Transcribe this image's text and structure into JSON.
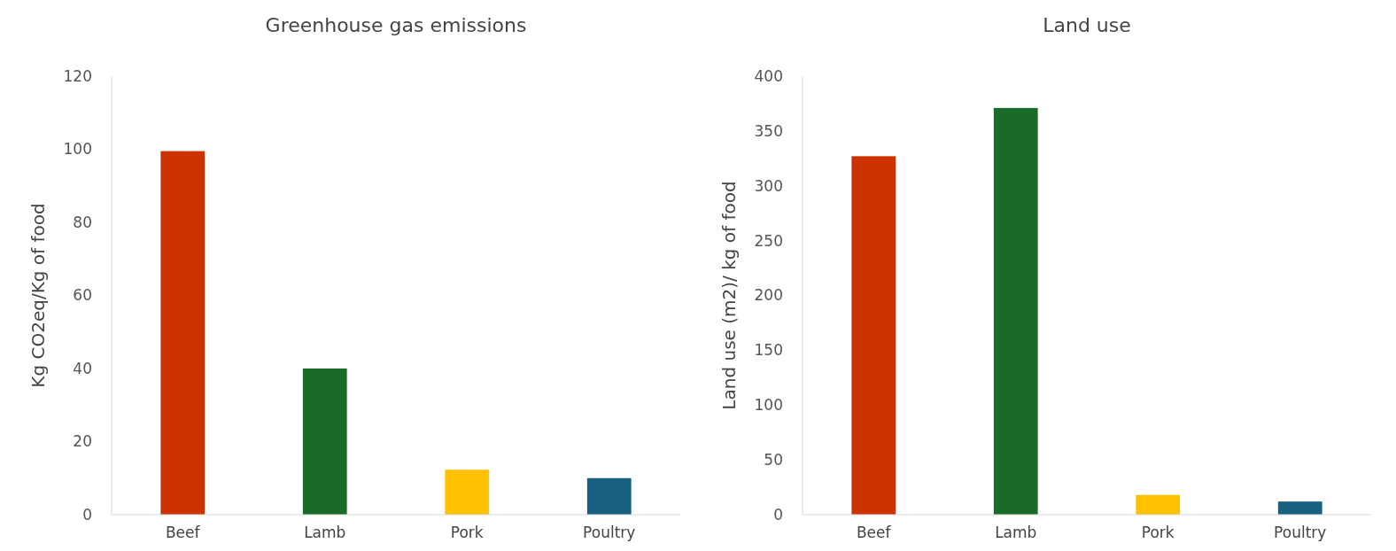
{
  "chart_data": [
    {
      "type": "bar",
      "title": "Greenhouse gas emissions",
      "ylabel": "Kg CO2eq/Kg of food",
      "categories": [
        "Beef",
        "Lamb",
        "Pork",
        "Poultry"
      ],
      "values": [
        99.5,
        40,
        12.3,
        10
      ],
      "colors": [
        "#cc3300",
        "#1a6b27",
        "#ffc000",
        "#17607f"
      ],
      "ylim": [
        0,
        120
      ],
      "yticks": [
        0,
        20,
        40,
        60,
        80,
        100,
        120
      ],
      "grid": false
    },
    {
      "type": "bar",
      "title": "Land use",
      "ylabel": "Land use (m2)/ kg of food",
      "categories": [
        "Beef",
        "Lamb",
        "Pork",
        "Poultry"
      ],
      "values": [
        327,
        371,
        18,
        12
      ],
      "colors": [
        "#cc3300",
        "#1a6b27",
        "#ffc000",
        "#17607f"
      ],
      "ylim": [
        0,
        400
      ],
      "yticks": [
        0,
        50,
        100,
        150,
        200,
        250,
        300,
        350,
        400
      ],
      "grid": false
    }
  ]
}
